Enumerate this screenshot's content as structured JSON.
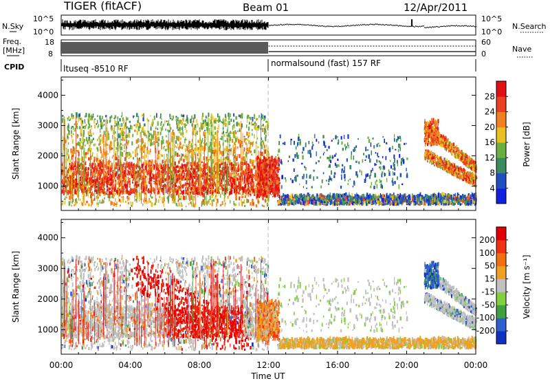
{
  "header": {
    "title": "TIGER (fitACF)",
    "beam": "Beam 01",
    "date": "12/Apr/2011"
  },
  "top_panels": {
    "nsky_label": "N.Sky",
    "nsearch_label": "N.Search",
    "nsky_ticks": [
      "10^5",
      "10^0"
    ],
    "nsky_right_ticks": [
      "10^5",
      "10^0"
    ],
    "freq_label_1": "Freq.",
    "freq_label_2": "[MHz]",
    "freq_ticks": [
      "18",
      "8"
    ],
    "nave_label": "Nave",
    "nave_ticks": [
      "60",
      "0"
    ],
    "cpid_label": "CPID",
    "cpid_1": "ltuseq -8510 RF",
    "cpid_2": "normalsound (fast) 157 RF"
  },
  "chart_data": [
    {
      "type": "heatmap",
      "name": "power",
      "ylabel": "Slant Range [km]",
      "yticks": [
        1000,
        2000,
        3000,
        4000
      ],
      "ylim": [
        200,
        4600
      ],
      "xlim_hours": [
        0,
        24
      ],
      "colorbar_label": "Power [dB]",
      "colorbar_ticks": [
        4,
        8,
        12,
        16,
        20,
        24,
        28
      ],
      "colorbar_range": [
        0,
        32
      ],
      "colors": [
        "#1020e0",
        "#2050c0",
        "#3a8a60",
        "#6ab040",
        "#e8c020",
        "#f08020",
        "#e84020",
        "#e01010"
      ]
    },
    {
      "type": "heatmap",
      "name": "velocity",
      "ylabel": "Slant Range [km]",
      "yticks": [
        1000,
        2000,
        3000,
        4000
      ],
      "ylim": [
        200,
        4600
      ],
      "xlim_hours": [
        0,
        24
      ],
      "colorbar_label": "Velocity [m s⁻¹]",
      "colorbar_ticks": [
        "200",
        "100",
        "50",
        "15",
        "-15",
        "-50",
        "-100",
        "-200"
      ],
      "colors": [
        "#1030c0",
        "#3060d0",
        "#40a040",
        "#80d040",
        "#c0c0c0",
        "#f0a020",
        "#f07010",
        "#f03010",
        "#e00000"
      ]
    }
  ],
  "xaxis": {
    "ticks": [
      "00:00",
      "04:00",
      "08:00",
      "12:00",
      "16:00",
      "20:00",
      "00:00"
    ],
    "label": "Time UT"
  }
}
